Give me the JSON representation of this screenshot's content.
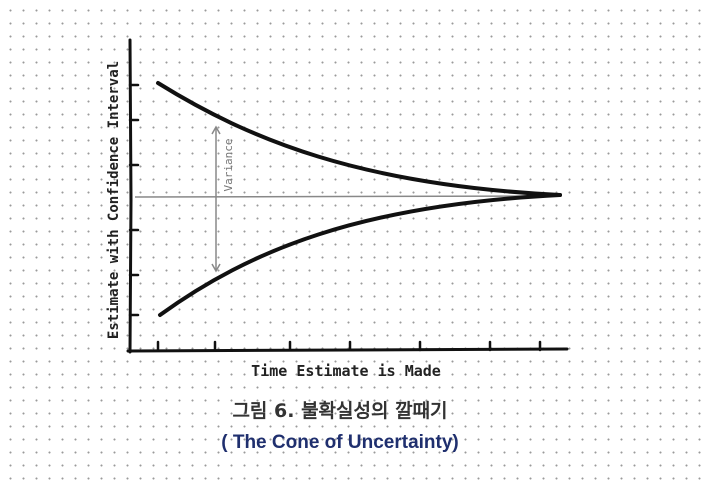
{
  "figure": {
    "y_axis_label": "Estimate with Confidence Interval",
    "x_axis_label": "Time Estimate is Made",
    "annotation": "Variance"
  },
  "caption": {
    "line1": "그림 6. 불확실성의 깔때기",
    "line2": "( The Cone of Uncertainty)"
  }
}
